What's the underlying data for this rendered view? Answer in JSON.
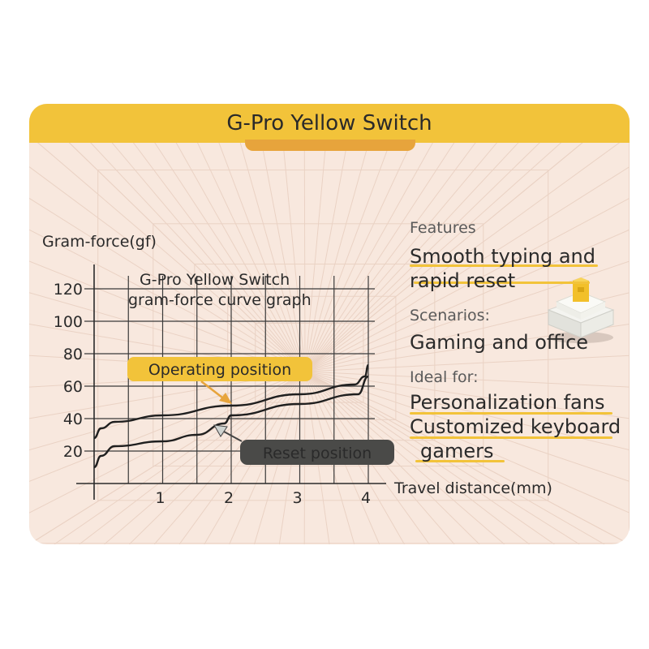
{
  "header": {
    "title": "G-Pro Yellow Switch"
  },
  "features": {
    "label": "Features",
    "value_line1": "Smooth typing and",
    "value_line2": " rapid reset"
  },
  "scenarios": {
    "label": "Scenarios:",
    "value": "Gaming and office"
  },
  "ideal_for": {
    "label": "Ideal for:",
    "line1": "Personalization fans",
    "line2": "Customized keyboard",
    "line3": "gamers"
  },
  "colors": {
    "accent_yellow": "#f2c33a",
    "accent_orange": "#e7a43c",
    "card_bg": "#f8e8de",
    "reset_label_bg": "#4a4a48"
  },
  "chart_data": {
    "type": "line",
    "title_line1": "G-Pro Yellow Switch",
    "title_line2": "gram-force curve graph",
    "ylabel": "Gram-force(gf)",
    "xlabel": "Travel distance(mm)",
    "xlim": [
      0,
      4
    ],
    "ylim": [
      0,
      130
    ],
    "x_ticks": [
      1,
      2,
      3,
      4
    ],
    "y_ticks": [
      20,
      40,
      60,
      80,
      100,
      120
    ],
    "grid": true,
    "series": [
      {
        "name": "Operating position",
        "x": [
          0,
          0.1,
          0.3,
          1.0,
          2.0,
          3.0,
          3.8,
          3.95,
          4.0
        ],
        "y": [
          28,
          34,
          38,
          42,
          48,
          55,
          61,
          66,
          73
        ]
      },
      {
        "name": "Reset position",
        "x": [
          0,
          0.1,
          0.3,
          1.0,
          1.5,
          1.9,
          2.0,
          3.0,
          3.85,
          4.0
        ],
        "y": [
          10,
          17,
          23,
          26,
          30,
          37,
          42,
          49,
          55,
          66
        ]
      }
    ],
    "annotations": {
      "operating": "Operating position",
      "reset": "Reset position"
    }
  }
}
